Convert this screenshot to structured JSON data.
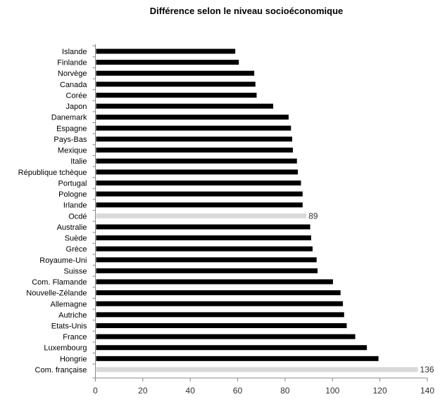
{
  "chart_data": {
    "type": "bar",
    "orientation": "horizontal",
    "title": "Différence selon le niveau socioéconomique",
    "xlabel": "",
    "ylabel": "",
    "xlim": [
      0,
      140
    ],
    "xticks": [
      0,
      20,
      40,
      60,
      80,
      100,
      120,
      140
    ],
    "grid": false,
    "categories": [
      "Islande",
      "Finlande",
      "Norvège",
      "Canada",
      "Corée",
      "Japon",
      "Danemark",
      "Espagne",
      "Pays-Bas",
      "Mexique",
      "Italie",
      "République tchèque",
      "Portugal",
      "Pologne",
      "Irlande",
      "Ocdé",
      "Australie",
      "Suède",
      "Grèce",
      "Royaume-Uni",
      "Suisse",
      "Com. Flamande",
      "Nouvelle-Zélande",
      "Allemagne",
      "Autriche",
      "Etats-Unis",
      "France",
      "Luxembourg",
      "Hongrie",
      "Com. française"
    ],
    "values": [
      59,
      60.5,
      67,
      67.5,
      68,
      75,
      81.5,
      82.5,
      83,
      83.3,
      85,
      85.4,
      86.7,
      87.4,
      87.4,
      89,
      90.6,
      91,
      91.6,
      93.3,
      93.7,
      100.2,
      103.4,
      104.4,
      104.9,
      106,
      109.6,
      114.5,
      119.4,
      136
    ],
    "highlighted": {
      "Ocdé": "89",
      "Com. française": "136"
    },
    "colors": {
      "default": "#000000",
      "highlight": "#d9d9d9"
    }
  }
}
